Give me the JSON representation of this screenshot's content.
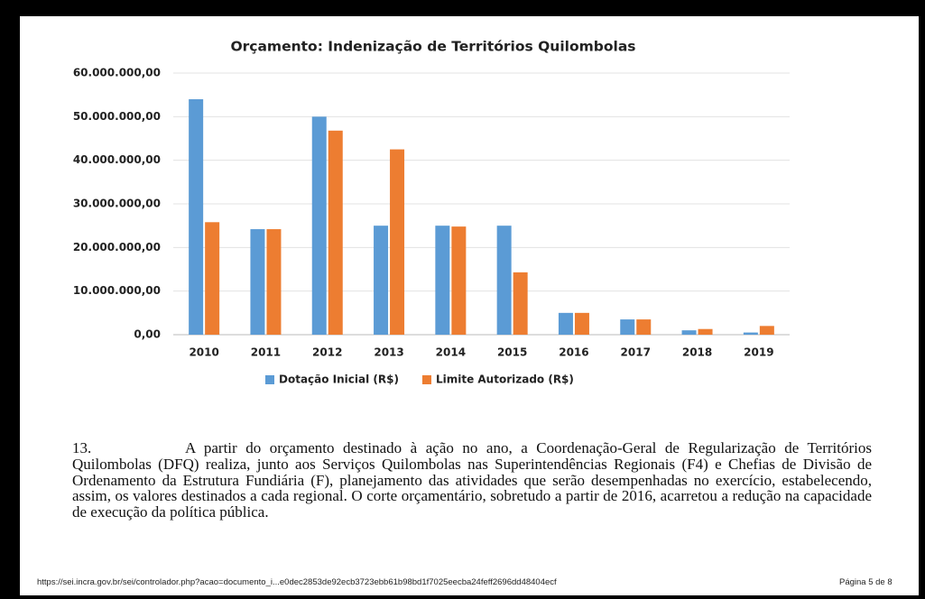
{
  "chart_data": {
    "type": "bar",
    "title": "Orçamento: Indenização de Territórios Quilombolas",
    "categories": [
      "2010",
      "2011",
      "2012",
      "2013",
      "2014",
      "2015",
      "2016",
      "2017",
      "2018",
      "2019"
    ],
    "series": [
      {
        "name": "Dotação Inicial (R$)",
        "color": "#5b9bd5",
        "values": [
          54000000,
          24200000,
          50000000,
          25000000,
          25000000,
          25000000,
          5000000,
          3500000,
          1000000,
          500000
        ]
      },
      {
        "name": "Limite Autorizado (R$)",
        "color": "#ed7d31",
        "values": [
          25800000,
          24200000,
          46800000,
          42500000,
          24800000,
          14300000,
          5000000,
          3500000,
          1300000,
          2000000
        ]
      }
    ],
    "ylim": [
      0,
      60000000
    ],
    "yticks": [
      {
        "value": 0,
        "label": "0,00"
      },
      {
        "value": 10000000,
        "label": "10.000.000,00"
      },
      {
        "value": 20000000,
        "label": "20.000.000,00"
      },
      {
        "value": 30000000,
        "label": "30.000.000,00"
      },
      {
        "value": 40000000,
        "label": "40.000.000,00"
      },
      {
        "value": 50000000,
        "label": "50.000.000,00"
      },
      {
        "value": 60000000,
        "label": "60.000.000,00"
      }
    ],
    "grid": true,
    "legend": "bottom"
  },
  "paragraph": {
    "number": "13.",
    "text": "A partir do orçamento destinado à ação no ano, a Coordenação-Geral de Regularização de Territórios Quilombolas (DFQ) realiza, junto aos Serviços Quilombolas nas Superintendências Regionais (F4) e Chefias de Divisão de Ordenamento da Estrutura Fundiária (F), planejamento das atividades que serão desempenhadas no exercício, estabelecendo, assim, os valores destinados a cada regional. O corte orçamentário, sobretudo a partir de 2016, acarretou a redução na capacidade de execução da política pública."
  },
  "footer": {
    "url": "https://sei.incra.gov.br/sei/controlador.php?acao=documento_i...e0dec2853de92ecb3723ebb61b98bd1f7025eecba24feff2696dd48404ecf",
    "page": "Página 5 de 8"
  }
}
